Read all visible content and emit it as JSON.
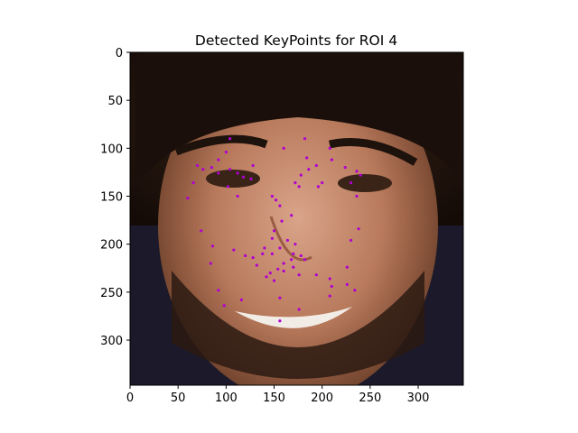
{
  "title": "Detected KeyPoints for ROI 4",
  "chart_data": {
    "type": "scatter",
    "title": "Detected KeyPoints for ROI 4",
    "xlim": [
      0,
      347
    ],
    "ylim": [
      347,
      0
    ],
    "xticks": [
      0,
      50,
      100,
      150,
      200,
      250,
      300
    ],
    "yticks": [
      0,
      50,
      100,
      150,
      200,
      250,
      300
    ],
    "marker_color": "#b000d0",
    "background": "photo-face",
    "points": [
      [
        70,
        118
      ],
      [
        76,
        122
      ],
      [
        85,
        120
      ],
      [
        92,
        112
      ],
      [
        104,
        122
      ],
      [
        112,
        126
      ],
      [
        118,
        130
      ],
      [
        126,
        132
      ],
      [
        100,
        104
      ],
      [
        104,
        90
      ],
      [
        66,
        136
      ],
      [
        60,
        152
      ],
      [
        74,
        186
      ],
      [
        92,
        126
      ],
      [
        102,
        140
      ],
      [
        112,
        150
      ],
      [
        128,
        118
      ],
      [
        148,
        150
      ],
      [
        152,
        154
      ],
      [
        156,
        160
      ],
      [
        158,
        176
      ],
      [
        168,
        170
      ],
      [
        178,
        128
      ],
      [
        186,
        122
      ],
      [
        194,
        118
      ],
      [
        210,
        112
      ],
      [
        172,
        136
      ],
      [
        176,
        140
      ],
      [
        196,
        140
      ],
      [
        200,
        136
      ],
      [
        208,
        100
      ],
      [
        182,
        90
      ],
      [
        160,
        100
      ],
      [
        184,
        110
      ],
      [
        224,
        120
      ],
      [
        236,
        124
      ],
      [
        240,
        128
      ],
      [
        230,
        136
      ],
      [
        236,
        150
      ],
      [
        238,
        184
      ],
      [
        230,
        196
      ],
      [
        226,
        224
      ],
      [
        226,
        242
      ],
      [
        234,
        248
      ],
      [
        208,
        236
      ],
      [
        210,
        244
      ],
      [
        150,
        186
      ],
      [
        148,
        194
      ],
      [
        140,
        204
      ],
      [
        138,
        210
      ],
      [
        148,
        210
      ],
      [
        156,
        204
      ],
      [
        164,
        196
      ],
      [
        172,
        200
      ],
      [
        170,
        210
      ],
      [
        178,
        212
      ],
      [
        182,
        216
      ],
      [
        168,
        216
      ],
      [
        160,
        220
      ],
      [
        154,
        226
      ],
      [
        146,
        230
      ],
      [
        142,
        234
      ],
      [
        132,
        222
      ],
      [
        128,
        214
      ],
      [
        120,
        212
      ],
      [
        108,
        206
      ],
      [
        86,
        202
      ],
      [
        84,
        220
      ],
      [
        92,
        248
      ],
      [
        98,
        264
      ],
      [
        116,
        258
      ],
      [
        150,
        238
      ],
      [
        160,
        228
      ],
      [
        170,
        224
      ],
      [
        176,
        232
      ],
      [
        156,
        256
      ],
      [
        156,
        280
      ],
      [
        176,
        268
      ],
      [
        208,
        254
      ],
      [
        194,
        232
      ]
    ]
  }
}
